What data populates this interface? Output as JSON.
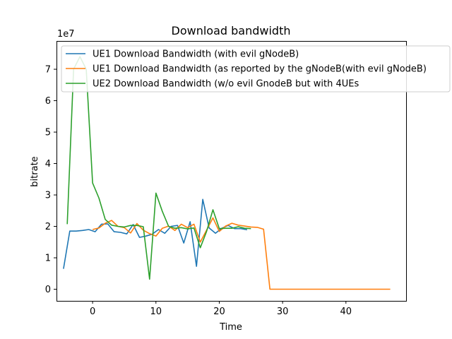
{
  "chart_data": {
    "type": "line",
    "title": "Download bandwidth",
    "xlabel": "Time",
    "ylabel": "bitrate",
    "y_scale_label": "1e7",
    "xlim": [
      -5.7,
      49.5
    ],
    "ylim": [
      -3700000,
      79000000
    ],
    "x_ticks": [
      0,
      10,
      20,
      30,
      40
    ],
    "y_ticks": [
      0,
      10000000,
      20000000,
      30000000,
      40000000,
      50000000,
      60000000,
      70000000
    ],
    "y_tick_labels": [
      "0",
      "1",
      "2",
      "3",
      "4",
      "5",
      "6",
      "7"
    ],
    "grid": false,
    "legend_position": "top-left",
    "series": [
      {
        "name": "UE1 Download Bandwidth (with evil gNodeB)",
        "color": "#1f77b4",
        "x": [
          -4.6,
          -3.6,
          -2.6,
          -1.6,
          -0.6,
          0.4,
          1.4,
          2.4,
          3.4,
          4.4,
          5.4,
          6.4,
          7.4,
          8.4,
          9.4,
          10.4,
          11.4,
          12.4,
          13.4,
          14.4,
          15.4,
          16.4,
          17.4,
          18.4,
          19.4,
          20.4,
          21.4,
          22.4,
          23.4,
          24.4
        ],
        "y": [
          6500000,
          18500000,
          18500000,
          18700000,
          19000000,
          18300000,
          20700000,
          20800000,
          18300000,
          18100000,
          17600000,
          20600000,
          16500000,
          16900000,
          17500000,
          19000000,
          17800000,
          20000000,
          20300000,
          14700000,
          21500000,
          7300000,
          28600000,
          19500000,
          17800000,
          19400000,
          20300000,
          19300000,
          19300000,
          18900000
        ]
      },
      {
        "name": "UE1 Download Bandwidth (as reported by the gNodeB(with evil gNodeB)",
        "color": "#ff7f0e",
        "x": [
          0,
          1,
          2,
          3,
          4,
          5,
          6,
          7,
          8,
          9,
          10,
          11,
          12,
          13,
          14,
          15,
          16,
          17,
          18,
          19,
          20,
          21,
          22,
          23,
          24,
          25,
          26,
          27,
          28,
          30,
          32,
          34,
          36,
          38,
          40,
          42,
          44,
          46,
          47
        ],
        "y": [
          19000000,
          19500000,
          21000000,
          21900000,
          20000000,
          19600000,
          17900000,
          20900000,
          18800000,
          17700000,
          16900000,
          19400000,
          20100000,
          18700000,
          20700000,
          19600000,
          20700000,
          15000000,
          18800000,
          22700000,
          18400000,
          20100000,
          21000000,
          20400000,
          20100000,
          19800000,
          19700000,
          19100000,
          0,
          0,
          0,
          0,
          0,
          0,
          0,
          0,
          0,
          0,
          0
        ]
      },
      {
        "name": "UE2 Download Bandwidth (w/o evil GnodeB but with 4UEs",
        "color": "#2ca02c",
        "x": [
          -4,
          -3,
          -2,
          -1,
          0,
          1,
          2,
          3,
          4,
          5,
          6,
          7,
          8,
          9,
          10,
          11,
          12,
          13,
          14,
          15,
          16,
          17,
          18,
          19,
          20,
          21,
          22,
          23,
          24,
          25
        ],
        "y": [
          20700000,
          70000000,
          74000000,
          70000000,
          33800000,
          29000000,
          22200000,
          20400000,
          20000000,
          19800000,
          20300000,
          20300000,
          19900000,
          3200000,
          30600000,
          24800000,
          20000000,
          19400000,
          19600000,
          19200000,
          19500000,
          13200000,
          18400000,
          25300000,
          19300000,
          19400000,
          19400000,
          19900000,
          19400000,
          19300000
        ]
      }
    ]
  }
}
